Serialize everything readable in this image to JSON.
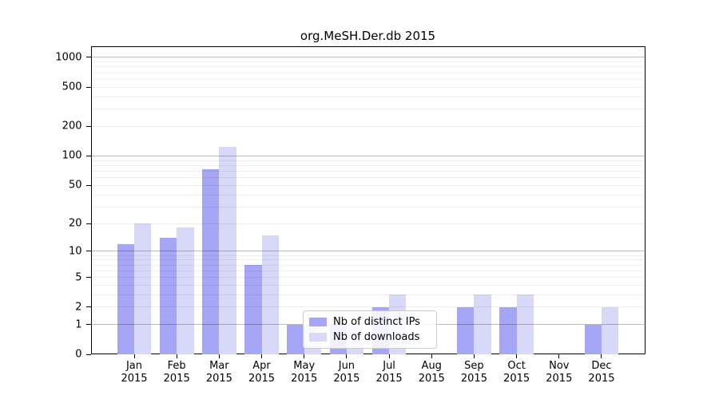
{
  "title": "org.MeSH.Der.db 2015",
  "chart_data": {
    "type": "bar",
    "title": "org.MeSH.Der.db 2015",
    "categories": [
      {
        "month": "Jan",
        "year": "2015"
      },
      {
        "month": "Feb",
        "year": "2015"
      },
      {
        "month": "Mar",
        "year": "2015"
      },
      {
        "month": "Apr",
        "year": "2015"
      },
      {
        "month": "May",
        "year": "2015"
      },
      {
        "month": "Jun",
        "year": "2015"
      },
      {
        "month": "Jul",
        "year": "2015"
      },
      {
        "month": "Aug",
        "year": "2015"
      },
      {
        "month": "Sep",
        "year": "2015"
      },
      {
        "month": "Oct",
        "year": "2015"
      },
      {
        "month": "Nov",
        "year": "2015"
      },
      {
        "month": "Dec",
        "year": "2015"
      }
    ],
    "series": [
      {
        "name": "Nb of distinct IPs",
        "color": "#a5a6f5",
        "values": [
          12,
          14,
          73,
          7,
          1,
          1,
          2,
          0,
          2,
          2,
          0,
          1
        ]
      },
      {
        "name": "Nb of downloads",
        "color": "#d8d9f9",
        "values": [
          20,
          18,
          125,
          15,
          1,
          1,
          3,
          0,
          3,
          3,
          0,
          2
        ]
      }
    ],
    "yticks": [
      0,
      1,
      2,
      5,
      10,
      20,
      50,
      100,
      200,
      500,
      1000
    ],
    "yscale": "log1p",
    "ylim": [
      0,
      1000
    ],
    "grid": true,
    "legend_position": "inside-bottom-center"
  },
  "colors": {
    "distinct_ips": "#a5a6f5",
    "downloads": "#d8d9f9",
    "major_grid": "#bdbdbd",
    "minor_grid": "#ededed",
    "axis": "#000000"
  }
}
